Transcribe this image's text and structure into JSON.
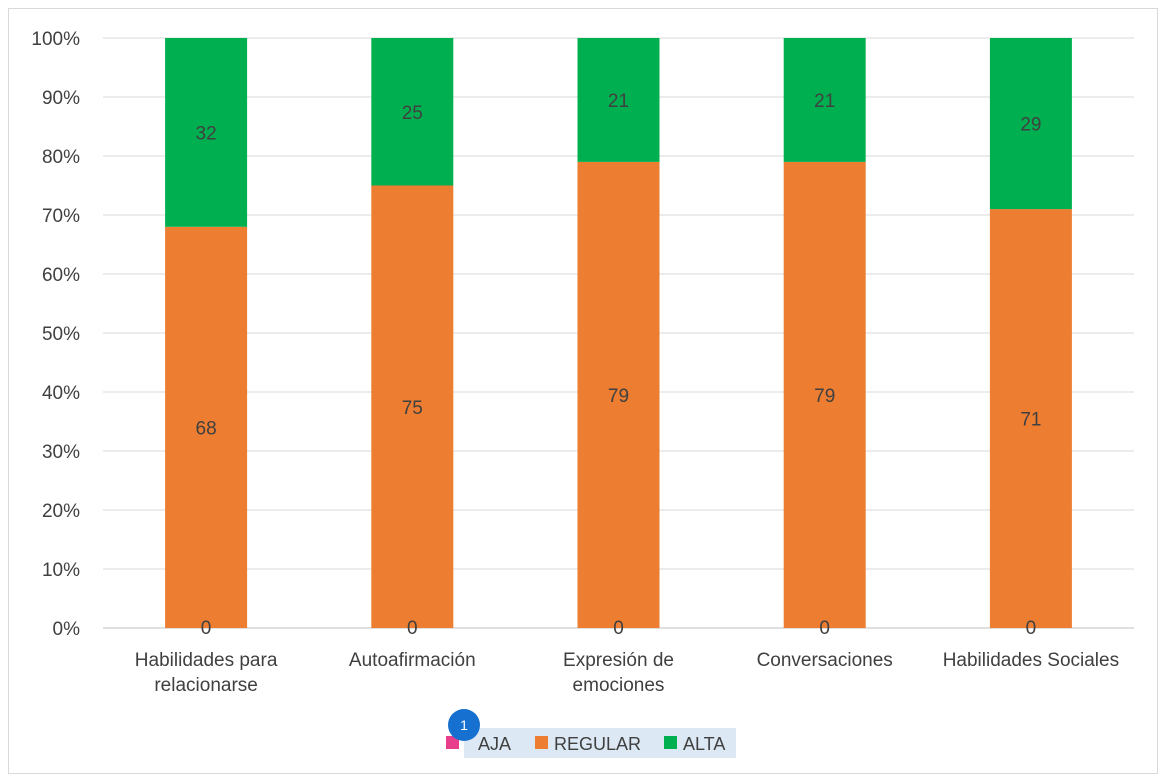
{
  "chart_data": {
    "type": "bar",
    "stacked": true,
    "categories": [
      [
        "Habilidades para",
        "relacionarse"
      ],
      [
        "Autoafirmación"
      ],
      [
        "Expresión de",
        "emociones"
      ],
      [
        "Conversaciones"
      ],
      [
        "Habilidades Sociales"
      ]
    ],
    "series": [
      {
        "name": "BAJA",
        "values": [
          0,
          0,
          0,
          0,
          0
        ],
        "color": "#e83e8c"
      },
      {
        "name": "REGULAR",
        "values": [
          68,
          75,
          79,
          79,
          71
        ],
        "color": "#ed7d31"
      },
      {
        "name": "ALTA",
        "values": [
          32,
          25,
          21,
          21,
          29
        ],
        "color": "#00b050"
      }
    ],
    "yticks": [
      "0%",
      "10%",
      "20%",
      "30%",
      "40%",
      "50%",
      "60%",
      "70%",
      "80%",
      "90%",
      "100%"
    ],
    "ylim": [
      0,
      100
    ],
    "grid": true,
    "legend_position": "bottom",
    "legend_labels": [
      "AJA",
      "REGULAR",
      "ALTA"
    ],
    "badge": "1",
    "title": "",
    "xlabel": "",
    "ylabel": ""
  }
}
